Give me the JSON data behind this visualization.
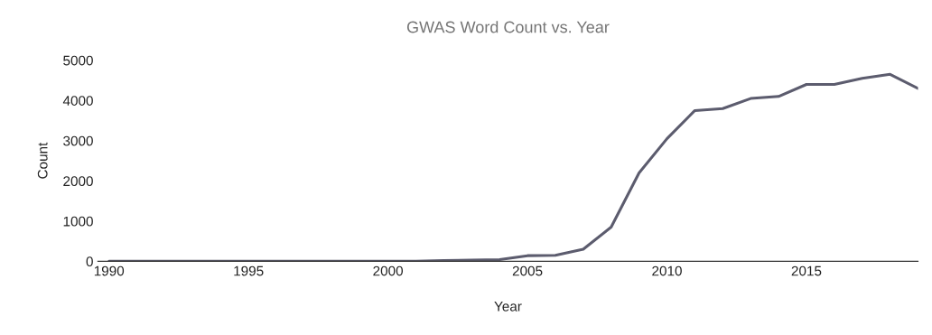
{
  "chart_data": {
    "type": "line",
    "title": "GWAS Word Count vs. Year",
    "xlabel": "Year",
    "ylabel": "Count",
    "x": [
      1990,
      1991,
      1992,
      1993,
      1994,
      1995,
      1996,
      1997,
      1998,
      1999,
      2000,
      2001,
      2002,
      2003,
      2004,
      2005,
      2006,
      2007,
      2008,
      2009,
      2010,
      2011,
      2012,
      2013,
      2014,
      2015,
      2016,
      2017,
      2018,
      2019
    ],
    "series": [
      {
        "color": "#5c5c6e",
        "values": [
          0,
          0,
          0,
          0,
          0,
          0,
          0,
          0,
          0,
          0,
          0,
          0,
          20,
          30,
          40,
          140,
          150,
          300,
          850,
          2200,
          3050,
          3750,
          3800,
          4050,
          4100,
          4400,
          4400,
          4550,
          4650,
          4300
        ]
      }
    ],
    "xlim": [
      1989.6,
      2019
    ],
    "xticks": [
      1990,
      1995,
      2000,
      2005,
      2010,
      2015
    ],
    "ylim": [
      0,
      5000
    ],
    "yticks": [
      0,
      1000,
      2000,
      3000,
      4000,
      5000
    ],
    "grid": false,
    "marker": "none",
    "line_style": "solid"
  }
}
